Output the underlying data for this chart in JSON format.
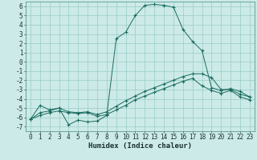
{
  "title": "",
  "xlabel": "Humidex (Indice chaleur)",
  "bg_color": "#cceae7",
  "grid_color": "#99ccc8",
  "line_color": "#1a6b60",
  "xlim": [
    -0.5,
    23.5
  ],
  "ylim": [
    -7.5,
    6.5
  ],
  "xticks": [
    0,
    1,
    2,
    3,
    4,
    5,
    6,
    7,
    8,
    9,
    10,
    11,
    12,
    13,
    14,
    15,
    16,
    17,
    18,
    19,
    20,
    21,
    22,
    23
  ],
  "yticks": [
    -7,
    -6,
    -5,
    -4,
    -3,
    -2,
    -1,
    0,
    1,
    2,
    3,
    4,
    5,
    6
  ],
  "humidex_main": [
    -6.2,
    -4.7,
    -5.2,
    -5.0,
    -6.8,
    -6.3,
    -6.5,
    -6.4,
    -5.8,
    2.5,
    3.2,
    5.0,
    6.1,
    6.2,
    6.1,
    5.9,
    3.5,
    2.2,
    1.2,
    -2.8,
    -3.1,
    -2.9,
    -3.2,
    -3.8
  ],
  "humidex_line2": [
    -6.2,
    -5.8,
    -5.5,
    -5.3,
    -5.5,
    -5.6,
    -5.5,
    -5.9,
    -5.7,
    -5.2,
    -4.7,
    -4.1,
    -3.7,
    -3.3,
    -2.9,
    -2.5,
    -2.1,
    -1.8,
    -2.6,
    -3.1,
    -3.4,
    -3.1,
    -3.8,
    -4.1
  ],
  "humidex_line3": [
    -6.2,
    -5.5,
    -5.3,
    -5.0,
    -5.4,
    -5.5,
    -5.4,
    -5.7,
    -5.4,
    -4.8,
    -4.2,
    -3.7,
    -3.2,
    -2.8,
    -2.4,
    -2.0,
    -1.6,
    -1.3,
    -1.3,
    -1.7,
    -3.0,
    -3.0,
    -3.5,
    -3.8
  ],
  "fontsize_label": 6.5,
  "fontsize_tick": 5.5
}
